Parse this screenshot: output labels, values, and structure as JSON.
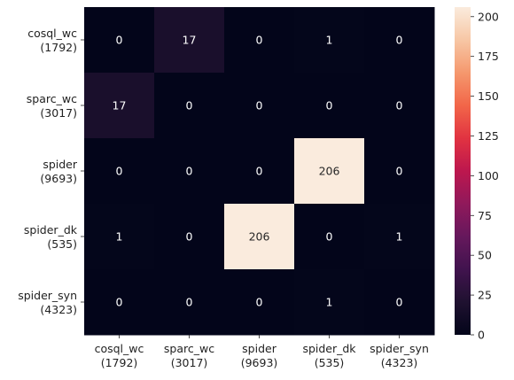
{
  "chart_data": {
    "type": "heatmap",
    "title": "",
    "xlabel": "",
    "ylabel": "",
    "row_labels": [
      [
        "cosql_wc",
        "(1792)"
      ],
      [
        "sparc_wc",
        "(3017)"
      ],
      [
        "spider",
        "(9693)"
      ],
      [
        "spider_dk",
        "(535)"
      ],
      [
        "spider_syn",
        "(4323)"
      ]
    ],
    "col_labels": [
      [
        "cosql_wc",
        "(1792)"
      ],
      [
        "sparc_wc",
        "(3017)"
      ],
      [
        "spider",
        "(9693)"
      ],
      [
        "spider_dk",
        "(535)"
      ],
      [
        "spider_syn",
        "(4323)"
      ]
    ],
    "values": [
      [
        0,
        17,
        0,
        1,
        0
      ],
      [
        17,
        0,
        0,
        0,
        0
      ],
      [
        0,
        0,
        0,
        206,
        0
      ],
      [
        1,
        0,
        206,
        0,
        1
      ],
      [
        0,
        0,
        0,
        1,
        0
      ]
    ],
    "colorbar": {
      "min": 0,
      "max": 206,
      "ticks": [
        0,
        25,
        50,
        75,
        100,
        125,
        150,
        175,
        200
      ]
    },
    "colormap": "rocket",
    "colors": {
      "low": "#03051a",
      "high": "#faebdd",
      "text_dark_bg": "#ffffff",
      "text_light_bg": "#262626"
    }
  }
}
